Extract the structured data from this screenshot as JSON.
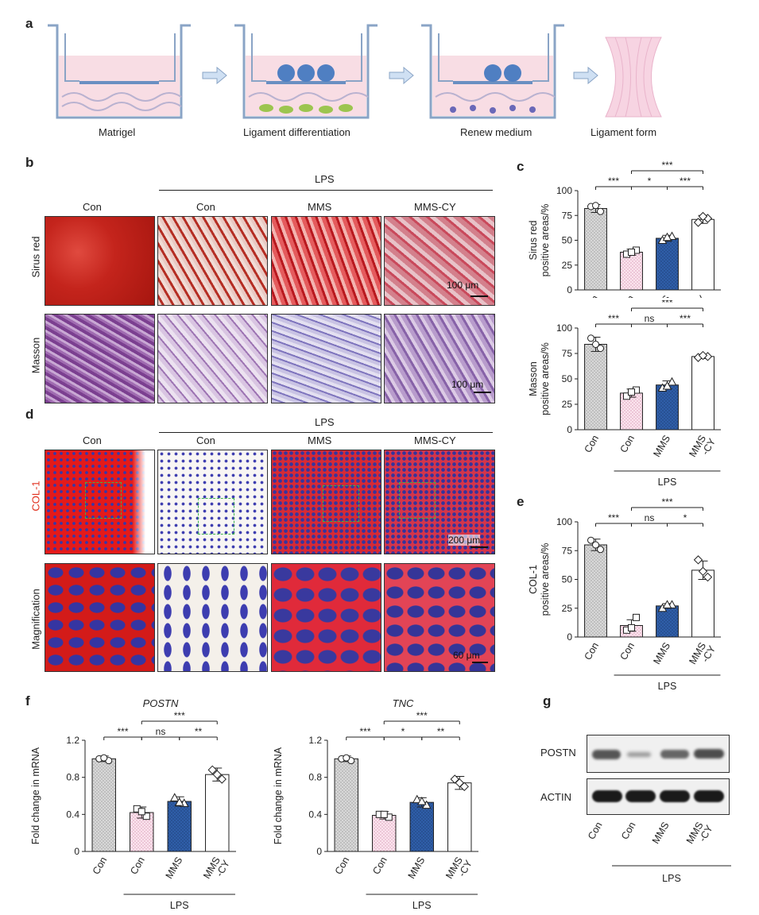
{
  "panels": {
    "a": "a",
    "b": "b",
    "c": "c",
    "d": "d",
    "e": "e",
    "f": "f",
    "g": "g"
  },
  "panel_a": {
    "steps": [
      "Matrigel",
      "Ligament differentiation",
      "Renew medium",
      "Ligament form"
    ]
  },
  "panel_b": {
    "group_header": "LPS",
    "columns": [
      "Con",
      "Con",
      "MMS",
      "MMS-CY"
    ],
    "rows": [
      "Sirus red",
      "Masson"
    ],
    "scale": "100 μm",
    "colors": {
      "sirus": [
        "#c8281f",
        "#d06b60",
        "#d94a4a",
        "#c9707a"
      ],
      "masson": [
        "#8a4e9e",
        "#b795c6",
        "#a59ad0",
        "#a688bf"
      ]
    }
  },
  "panel_d": {
    "group_header": "LPS",
    "columns": [
      "Con",
      "Con",
      "MMS",
      "MMS-CY"
    ],
    "rows": [
      "COL-1",
      "Magnification"
    ],
    "scale_top": "200 μm",
    "scale_bottom": "60 μm"
  },
  "panel_g": {
    "rows": [
      "POSTN",
      "ACTIN"
    ],
    "lanes": [
      "Con",
      "Con",
      "MMS",
      "MMS\n-CY"
    ],
    "group": "LPS"
  },
  "chart_data": [
    {
      "id": "c_top",
      "type": "bar",
      "ylabel": "Sirus red\npositive areas/%",
      "categories": [
        "Con",
        "Con",
        "MMS",
        "MMS-CY"
      ],
      "values": [
        82,
        38,
        52,
        71
      ],
      "errors": [
        4,
        3,
        3,
        4
      ],
      "points": [
        [
          84,
          79,
          85
        ],
        [
          36,
          40,
          38
        ],
        [
          50,
          54,
          53
        ],
        [
          68,
          72,
          74
        ]
      ],
      "ylim": [
        0,
        100
      ],
      "yticks": [
        0,
        25,
        50,
        75,
        100
      ],
      "markers": [
        "circle",
        "square",
        "triangle",
        "diamond"
      ],
      "sig": [
        {
          "from": 0,
          "to": 1,
          "label": "***",
          "level": 0
        },
        {
          "from": 1,
          "to": 2,
          "label": "*",
          "level": 0
        },
        {
          "from": 2,
          "to": 3,
          "label": "***",
          "level": 0
        },
        {
          "from": 1,
          "to": 3,
          "label": "***",
          "level": 1
        }
      ]
    },
    {
      "id": "c_bottom",
      "type": "bar",
      "ylabel": "Masson\npositive areas/%",
      "categories": [
        "Con",
        "Con",
        "MMS",
        "MMS\n-CY"
      ],
      "values": [
        84,
        36,
        44,
        72
      ],
      "errors": [
        7,
        4,
        4,
        2
      ],
      "points": [
        [
          90,
          80,
          84
        ],
        [
          33,
          39,
          37
        ],
        [
          41,
          47,
          43
        ],
        [
          71,
          72,
          73
        ]
      ],
      "ylim": [
        0,
        100
      ],
      "yticks": [
        0,
        25,
        50,
        75,
        100
      ],
      "markers": [
        "circle",
        "square",
        "triangle",
        "diamond"
      ],
      "sig": [
        {
          "from": 0,
          "to": 1,
          "label": "***",
          "level": 0
        },
        {
          "from": 1,
          "to": 2,
          "label": "ns",
          "level": 0
        },
        {
          "from": 2,
          "to": 3,
          "label": "***",
          "level": 0
        },
        {
          "from": 1,
          "to": 3,
          "label": "***",
          "level": 1
        }
      ],
      "group": "LPS"
    },
    {
      "id": "e",
      "type": "bar",
      "ylabel": "COL-1\npositive areas/%",
      "categories": [
        "Con",
        "Con",
        "MMS",
        "MMS\n-CY"
      ],
      "values": [
        80,
        10,
        27,
        58
      ],
      "errors": [
        5,
        5,
        2,
        8
      ],
      "points": [
        [
          84,
          76,
          80
        ],
        [
          6,
          17,
          8
        ],
        [
          25,
          28,
          28
        ],
        [
          67,
          52,
          57
        ]
      ],
      "ylim": [
        0,
        100
      ],
      "yticks": [
        0,
        25,
        50,
        75,
        100
      ],
      "markers": [
        "circle",
        "square",
        "triangle",
        "diamond"
      ],
      "sig": [
        {
          "from": 0,
          "to": 1,
          "label": "***",
          "level": 0
        },
        {
          "from": 1,
          "to": 2,
          "label": "ns",
          "level": 0
        },
        {
          "from": 2,
          "to": 3,
          "label": "*",
          "level": 0
        },
        {
          "from": 1,
          "to": 3,
          "label": "***",
          "level": 1
        }
      ],
      "group": "LPS"
    },
    {
      "id": "f_postn",
      "type": "bar",
      "title": "POSTN",
      "ylabel": "Fold change in mRNA",
      "categories": [
        "Con",
        "Con",
        "MMS",
        "MMS\n-CY"
      ],
      "values": [
        1.0,
        0.42,
        0.54,
        0.83
      ],
      "errors": [
        0.03,
        0.06,
        0.05,
        0.07
      ],
      "points": [
        [
          1.0,
          0.98,
          1.01
        ],
        [
          0.46,
          0.38,
          0.43
        ],
        [
          0.58,
          0.52,
          0.53
        ],
        [
          0.88,
          0.78,
          0.83
        ]
      ],
      "ylim": [
        0,
        1.2
      ],
      "yticks": [
        0,
        0.4,
        0.8,
        1.2
      ],
      "ytick_labels": [
        "0",
        "0.4",
        "0.8",
        "1.2"
      ],
      "markers": [
        "circle",
        "square",
        "triangle",
        "diamond"
      ],
      "sig": [
        {
          "from": 0,
          "to": 1,
          "label": "***",
          "level": 0
        },
        {
          "from": 1,
          "to": 2,
          "label": "ns",
          "level": 0
        },
        {
          "from": 2,
          "to": 3,
          "label": "**",
          "level": 0
        },
        {
          "from": 1,
          "to": 3,
          "label": "***",
          "level": 1
        }
      ],
      "group": "LPS"
    },
    {
      "id": "f_tnc",
      "type": "bar",
      "title": "TNC",
      "ylabel": "Fold change in mRNA",
      "categories": [
        "Con",
        "Con",
        "MMS",
        "MMS\n-CY"
      ],
      "values": [
        1.0,
        0.39,
        0.53,
        0.74
      ],
      "errors": [
        0.03,
        0.04,
        0.05,
        0.07
      ],
      "points": [
        [
          1.0,
          0.98,
          1.01
        ],
        [
          0.4,
          0.37,
          0.4
        ],
        [
          0.56,
          0.5,
          0.54
        ],
        [
          0.78,
          0.7,
          0.74
        ]
      ],
      "ylim": [
        0,
        1.2
      ],
      "yticks": [
        0,
        0.4,
        0.8,
        1.2
      ],
      "ytick_labels": [
        "0",
        "0.4",
        "0.8",
        "1.2"
      ],
      "markers": [
        "circle",
        "square",
        "triangle",
        "diamond"
      ],
      "sig": [
        {
          "from": 0,
          "to": 1,
          "label": "***",
          "level": 0
        },
        {
          "from": 1,
          "to": 2,
          "label": "*",
          "level": 0
        },
        {
          "from": 2,
          "to": 3,
          "label": "**",
          "level": 0
        },
        {
          "from": 1,
          "to": 3,
          "label": "***",
          "level": 1
        }
      ],
      "group": "LPS"
    }
  ],
  "bar_styles": {
    "fills": [
      "#d8d8d8",
      "#f6d9e6",
      "#2f5ea8",
      "#ffffff"
    ],
    "patterns": [
      "dots-gray",
      "dots-pink",
      "dots-blue",
      "none"
    ]
  }
}
